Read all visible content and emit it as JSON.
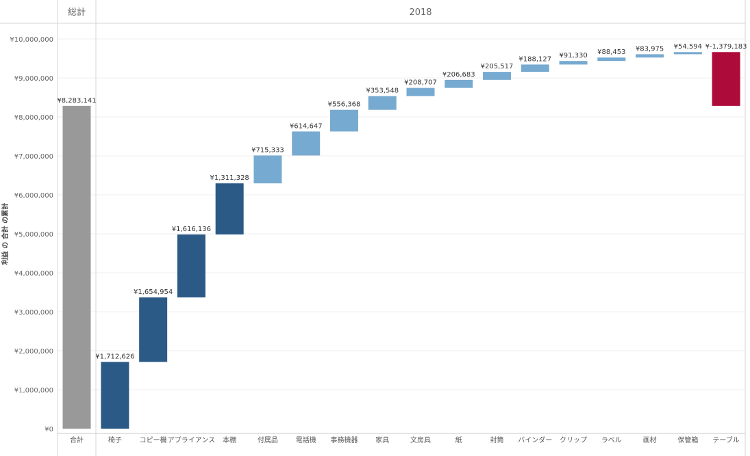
{
  "chart_data": {
    "type": "waterfall",
    "column_headers": {
      "total": "総計",
      "year": "2018"
    },
    "ylabel": "利益 の 合計 の累計",
    "ylim": [
      0,
      10000000
    ],
    "yticks": [
      {
        "value": 0,
        "label": "¥0"
      },
      {
        "value": 1000000,
        "label": "¥1,000,000"
      },
      {
        "value": 2000000,
        "label": "¥2,000,000"
      },
      {
        "value": 3000000,
        "label": "¥3,000,000"
      },
      {
        "value": 4000000,
        "label": "¥4,000,000"
      },
      {
        "value": 5000000,
        "label": "¥5,000,000"
      },
      {
        "value": 6000000,
        "label": "¥6,000,000"
      },
      {
        "value": 7000000,
        "label": "¥7,000,000"
      },
      {
        "value": 8000000,
        "label": "¥8,000,000"
      },
      {
        "value": 9000000,
        "label": "¥9,000,000"
      },
      {
        "value": 10000000,
        "label": "¥10,000,000"
      }
    ],
    "total": {
      "category": "合計",
      "value": 8283141,
      "label": "¥8,283,141"
    },
    "categories": [
      "椅子",
      "コピー機",
      "アプライアンス",
      "本棚",
      "付属品",
      "電話機",
      "事務機器",
      "家具",
      "文房具",
      "紙",
      "封筒",
      "バインダー",
      "クリップ",
      "ラベル",
      "画材",
      "保管箱",
      "テーブル"
    ],
    "values": [
      1712626,
      1654954,
      1616136,
      1311328,
      715333,
      614647,
      556368,
      353548,
      208707,
      206683,
      205517,
      188127,
      91330,
      88453,
      83975,
      54594,
      -1379183
    ],
    "labels": [
      "¥1,712,626",
      "¥1,654,954",
      "¥1,616,136",
      "¥1,311,328",
      "¥715,333",
      "¥614,647",
      "¥556,368",
      "¥353,548",
      "¥208,707",
      "¥206,683",
      "¥205,517",
      "¥188,127",
      "¥91,330",
      "¥88,453",
      "¥83,975",
      "¥54,594",
      "¥-1,379,183"
    ],
    "colors": {
      "total": "#999999",
      "negative": "#ad0b3a",
      "dark": "#2c5a87",
      "light": "#77aad0"
    },
    "grid": true
  }
}
